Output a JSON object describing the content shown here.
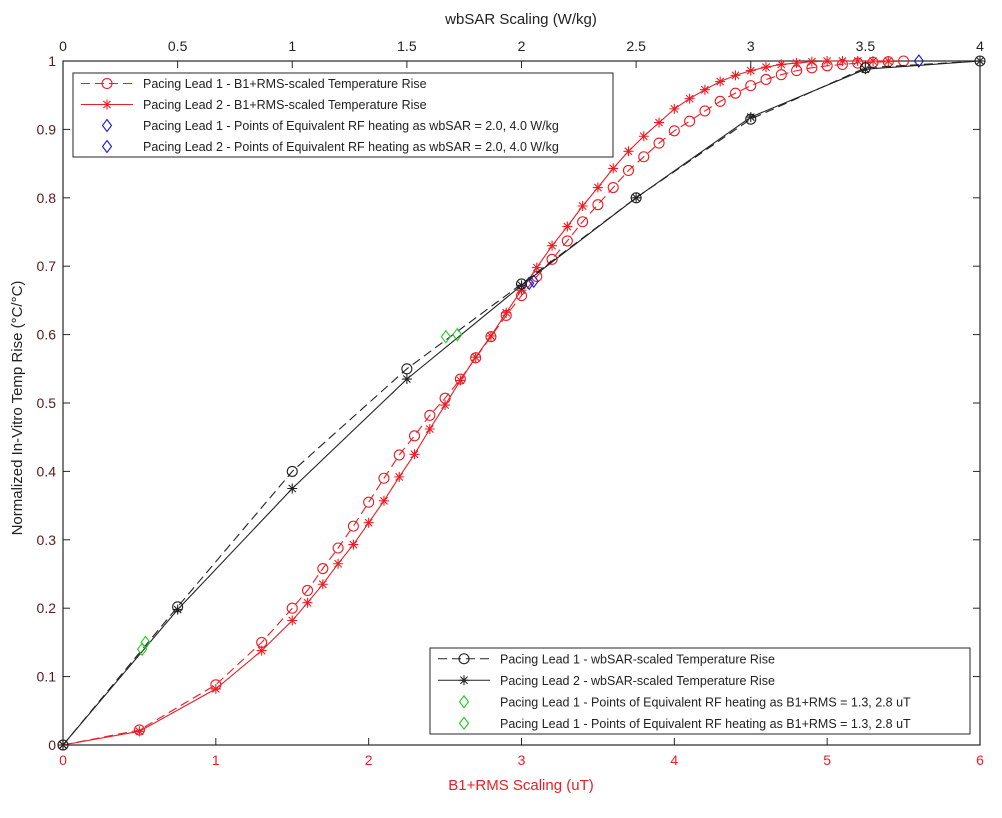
{
  "chart_data": {
    "type": "line",
    "top_axis": {
      "label": "wbSAR Scaling (W/kg)",
      "range": [
        0,
        4
      ],
      "ticks": [
        "0",
        "0.5",
        "1",
        "1.5",
        "2",
        "2.5",
        "3",
        "3.5",
        "4"
      ],
      "color": "#222222"
    },
    "bottom_axis": {
      "label": "B1+RMS Scaling (uT)",
      "range": [
        0,
        6
      ],
      "ticks": [
        "0",
        "1",
        "2",
        "3",
        "4",
        "5",
        "6"
      ],
      "color": "#ee1c24"
    },
    "left_axis": {
      "label": "Normalized In-Vitro Temp Rise (°C/°C)",
      "range": [
        0,
        1
      ],
      "ticks": [
        "0",
        "0.1",
        "0.2",
        "0.3",
        "0.4",
        "0.5",
        "0.6",
        "0.7",
        "0.8",
        "0.9",
        "1"
      ],
      "color": "#5a1a1a"
    },
    "grid": false,
    "series": [
      {
        "name": "Pacing Lead 1 - B1+RMS-scaled Temperature Rise",
        "axis": "bottom",
        "color": "#ee1c24",
        "dash": "dashed",
        "marker": "circle",
        "x": [
          0,
          0.5,
          1,
          1.3,
          1.5,
          1.6,
          1.7,
          1.8,
          1.9,
          2.0,
          2.1,
          2.2,
          2.3,
          2.4,
          2.5,
          2.6,
          2.7,
          2.8,
          2.9,
          3.0,
          3.1,
          3.2,
          3.3,
          3.4,
          3.5,
          3.6,
          3.7,
          3.8,
          3.9,
          4.0,
          4.1,
          4.2,
          4.3,
          4.4,
          4.5,
          4.6,
          4.7,
          4.8,
          4.9,
          5.0,
          5.1,
          5.2,
          5.3,
          5.4,
          5.5
        ],
        "y": [
          0,
          0.022,
          0.088,
          0.15,
          0.2,
          0.226,
          0.258,
          0.288,
          0.32,
          0.355,
          0.39,
          0.424,
          0.452,
          0.482,
          0.507,
          0.535,
          0.566,
          0.597,
          0.628,
          0.657,
          0.685,
          0.71,
          0.737,
          0.765,
          0.79,
          0.815,
          0.84,
          0.86,
          0.88,
          0.898,
          0.912,
          0.927,
          0.941,
          0.953,
          0.964,
          0.973,
          0.98,
          0.986,
          0.99,
          0.993,
          0.995,
          0.997,
          0.998,
          0.999,
          1.0
        ]
      },
      {
        "name": "Pacing Lead 2 - B1+RMS-scaled Temperature Rise",
        "axis": "bottom",
        "color": "#ee1c24",
        "dash": "solid",
        "marker": "asterisk",
        "x": [
          0,
          0.5,
          1,
          1.3,
          1.5,
          1.6,
          1.7,
          1.8,
          1.9,
          2.0,
          2.1,
          2.2,
          2.3,
          2.4,
          2.5,
          2.6,
          2.7,
          2.8,
          2.9,
          3.0,
          3.1,
          3.2,
          3.3,
          3.4,
          3.5,
          3.6,
          3.7,
          3.8,
          3.9,
          4.0,
          4.1,
          4.2,
          4.3,
          4.4,
          4.5,
          4.6,
          4.7,
          4.8,
          4.9,
          5.0,
          5.1,
          5.2,
          5.3,
          5.4
        ],
        "y": [
          0,
          0.02,
          0.082,
          0.138,
          0.182,
          0.208,
          0.235,
          0.265,
          0.293,
          0.325,
          0.357,
          0.392,
          0.425,
          0.462,
          0.497,
          0.533,
          0.567,
          0.598,
          0.632,
          0.665,
          0.698,
          0.73,
          0.758,
          0.788,
          0.815,
          0.843,
          0.868,
          0.89,
          0.91,
          0.93,
          0.945,
          0.958,
          0.97,
          0.979,
          0.986,
          0.991,
          0.995,
          0.997,
          0.999,
          1.0,
          1.0,
          1.0,
          1.0,
          1.0
        ]
      },
      {
        "name": "Pacing Lead 1 - Points of Equivalent RF heating as wbSAR = 2.0, 4.0 W/kg",
        "axis": "bottom",
        "color": "#1a1ad6",
        "dash": "none",
        "marker": "diamond",
        "x": [
          3.05,
          5.6
        ],
        "y": [
          0.675,
          1.0
        ]
      },
      {
        "name": "Pacing Lead 2 - Points of Equivalent RF heating as wbSAR = 2.0, 4.0 W/kg",
        "axis": "bottom",
        "color": "#1a1ad6",
        "dash": "none",
        "marker": "diamond",
        "x": [
          3.08
        ],
        "y": [
          0.678
        ]
      },
      {
        "name": "Pacing Lead 1 - wbSAR-scaled Temperature Rise",
        "axis": "top",
        "color": "#222222",
        "dash": "dashed",
        "marker": "circle",
        "x": [
          0,
          0.5,
          1.0,
          1.5,
          2.0,
          2.5,
          3.0,
          3.5,
          4.0
        ],
        "y": [
          0,
          0.202,
          0.4,
          0.55,
          0.674,
          0.8,
          0.915,
          0.99,
          1.0
        ]
      },
      {
        "name": "Pacing Lead 2 - wbSAR-scaled Temperature Rise",
        "axis": "top",
        "color": "#222222",
        "dash": "solid",
        "marker": "asterisk",
        "x": [
          0,
          0.5,
          1.0,
          1.5,
          2.0,
          2.5,
          3.0,
          3.5,
          4.0
        ],
        "y": [
          0,
          0.198,
          0.375,
          0.535,
          0.672,
          0.8,
          0.918,
          0.988,
          1.0
        ]
      },
      {
        "name": "Pacing Lead 1 - Points of Equivalent RF heating as B1+RMS = 1.3, 2.8 uT",
        "axis": "top",
        "color": "#22cc22",
        "dash": "none",
        "marker": "diamond",
        "x": [
          0.345,
          1.72
        ],
        "y": [
          0.14,
          0.6
        ]
      },
      {
        "name": "Pacing Lead 1 - Points of Equivalent RF heating as B1+RMS = 1.3, 2.8 uT",
        "axis": "top",
        "color": "#22cc22",
        "dash": "none",
        "marker": "diamond",
        "x": [
          0.36,
          1.67
        ],
        "y": [
          0.15,
          0.597
        ]
      }
    ],
    "legends": [
      {
        "placement": "top-left",
        "series_indices": [
          0,
          1,
          2,
          3
        ]
      },
      {
        "placement": "bottom-right",
        "series_indices": [
          4,
          5,
          6,
          7
        ]
      }
    ]
  }
}
